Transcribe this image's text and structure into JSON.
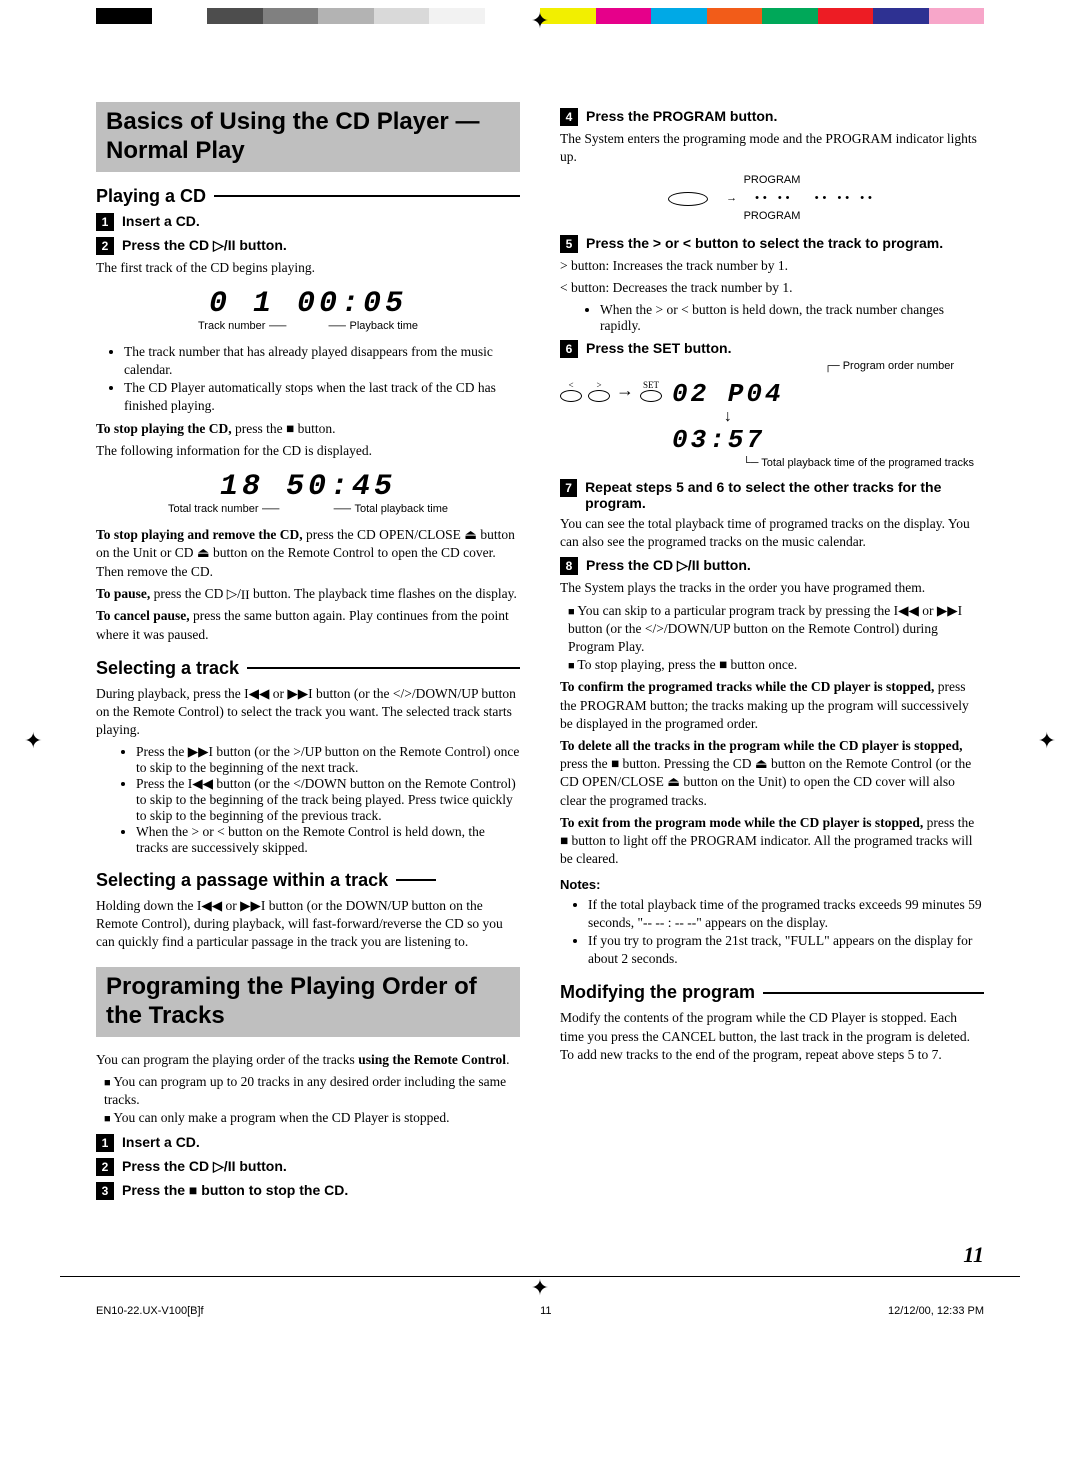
{
  "color_bar": [
    "#000000",
    "#ffffff",
    "#4d4d4d",
    "#808080",
    "#b3b3b3",
    "#d9d9d9",
    "#f2f2f2",
    "#ffffff",
    "#f2ef00",
    "#e6008a",
    "#00a9e6",
    "#f25c19",
    "#00a859",
    "#ed1c24",
    "#2e3192",
    "#f7a6c9"
  ],
  "page_number": "11",
  "footer": {
    "file": "EN10-22.UX-V100[B]f",
    "page": "11",
    "timestamp": "12/12/00, 12:33 PM"
  },
  "left": {
    "headline": "Basics of Using the CD Player — Normal Play",
    "sec1_title": "Playing a CD",
    "step1": "Insert a CD.",
    "step2": "Press the CD ▷/II button.",
    "first_track_text": "The first track of the CD begins playing.",
    "display1": {
      "seg": "0 1  00:05",
      "left_cap": "Track number",
      "right_cap": "Playback time"
    },
    "bullets1": [
      "The track number that has already played disappears from the music calendar.",
      "The CD Player automatically stops when the last track of the CD has finished playing."
    ],
    "stop_line": "To stop playing the CD, press the ■ button.",
    "following_info": "The following information for the CD is displayed.",
    "display2": {
      "seg": "18  50:45",
      "left_cap": "Total track number",
      "right_cap": "Total playback time"
    },
    "stop_remove": "To stop playing and remove the CD, press the CD OPEN/CLOSE ⏏ button on the Unit or CD ⏏ button on the Remote Control to open the CD cover. Then remove the CD.",
    "pause": "To pause, press the CD ▷/II button. The playback time flashes on the display.",
    "cancel_pause": "To cancel pause, press the same button again. Play continues from the point where it was paused.",
    "sec2_title": "Selecting a track",
    "sec2_body": "During playback, press the I◀◀ or ▶▶I button (or the </>/DOWN/UP button on the Remote Control) to select the track you want. The selected track starts playing.",
    "sec2_bullets": [
      "Press the ▶▶I button (or the >/UP button on the Remote Control) once to skip to the beginning of the next track.",
      "Press the I◀◀ button (or the </DOWN button on the Remote Control) to skip to the beginning of the track being played. Press twice quickly to skip to the beginning of the previous track.",
      "When the > or < button on the Remote Control is held down, the tracks are successively skipped."
    ],
    "sec3_title": "Selecting a passage within a track",
    "sec3_body": "Holding down the I◀◀ or ▶▶I button (or the DOWN/UP button on the Remote Control), during playback, will fast-forward/reverse the CD so you can quickly find a particular passage in the track you are listening to.",
    "headline2": "Programing the Playing Order of the Tracks",
    "prog_intro": "You can program the playing order of the tracks using the Remote Control.",
    "prog_sq": [
      "You can program up to 20 tracks in any desired order including the same tracks.",
      "You can only make a program when the CD Player is stopped."
    ],
    "pstep1": "Insert a CD.",
    "pstep2": "Press the CD ▷/II button.",
    "pstep3": "Press the ■ button to stop the CD."
  },
  "right": {
    "pstep4": "Press the PROGRAM button.",
    "p4_body": "The System enters the programing mode and the PROGRAM indicator lights up.",
    "diag1": {
      "label_top": "PROGRAM",
      "label_bottom": "PROGRAM"
    },
    "pstep5": "Press the > or < button to select the track to program.",
    "p5_lines": [
      "> button: Increases the track number by 1.",
      "< button: Decreases the track number by 1."
    ],
    "p5_bullet": "When the > or < button is held down, the track number changes rapidly.",
    "pstep6": "Press the SET button.",
    "diag2": {
      "prog_order_cap": "Program order number",
      "seg_top": "02    P04",
      "seg_bottom": "03:57",
      "total_cap": "Total playback time of the programed tracks",
      "set_label": "SET"
    },
    "pstep7": "Repeat steps 5 and 6 to select the other tracks for the program.",
    "p7_body": "You can see the total playback time of programed tracks on the display. You can also see the programed tracks on the music calendar.",
    "pstep8": "Press the CD ▷/II button.",
    "p8_body": "The System plays the tracks in the order you have programed them.",
    "p8_sq": [
      "You can skip to a particular program track by pressing the I◀◀ or ▶▶I button (or the </>/DOWN/UP button on the Remote Control) during Program Play.",
      "To stop playing, press the ■ button once."
    ],
    "confirm": "To confirm the programed tracks while the CD player is stopped, press the PROGRAM button; the tracks making up the program will successively be displayed in the programed order.",
    "delete_all": "To delete all the tracks in the program while the CD player is stopped, press the ■ button. Pressing the CD ⏏ button on the Remote Control (or the CD OPEN/CLOSE ⏏ button on the Unit) to open the CD cover will also clear the programed tracks.",
    "exit": "To exit from the program mode while the CD player is stopped, press the ■ button to light off the PROGRAM indicator. All the programed tracks will be cleared.",
    "notes_label": "Notes:",
    "notes": [
      "If the total playback time of the programed tracks exceeds 99 minutes 59 seconds, \"-- -- : -- --\" appears on the display.",
      "If you try to program the 21st track, \"FULL\" appears on the display for about 2 seconds."
    ],
    "modify_title": "Modifying the program",
    "modify_body": "Modify the contents of the program while the CD Player is stopped. Each time you press the CANCEL button, the last track in the program is deleted. To add new tracks to the end of the program, repeat above steps 5 to 7."
  }
}
